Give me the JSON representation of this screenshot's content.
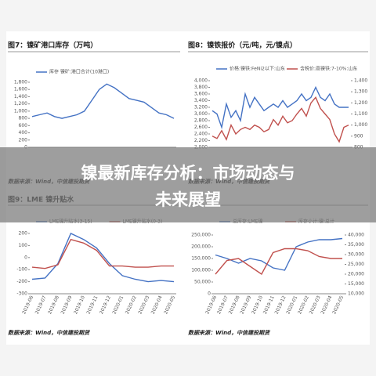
{
  "banner": [
    "镍最新库存分析：市场动态与",
    "未来展望"
  ],
  "chart_data": [
    {
      "type": "line",
      "title": "图7：镍矿港口库存（万吨）",
      "source": "数据来源：Wind，中信建投期货",
      "series": [
        {
          "name": "库存 镍矿:港口合计(10港口)",
          "color": "#4472c4",
          "values": [
            850,
            900,
            950,
            850,
            800,
            850,
            900,
            1000,
            1300,
            1600,
            1750,
            1650,
            1500,
            1350,
            1300,
            1250,
            1100,
            950,
            900,
            800
          ]
        }
      ],
      "ylim": [
        0,
        1800
      ],
      "yticks": [
        0,
        200,
        400,
        600,
        800,
        {
          "value": 1000,
          "label": "1,000"
        },
        {
          "value": 1200,
          "label": "1,200"
        },
        {
          "value": 1400,
          "label": "1,400"
        },
        {
          "value": 1600,
          "label": "1,600"
        },
        {
          "value": 1800,
          "label": "1,800"
        }
      ]
    },
    {
      "type": "line",
      "title": "图8：镍铁报价（元/吨，元/镍点）",
      "source": "数据来源：Wind，中信建投期货",
      "series": [
        {
          "name": "价格:镍铁:FeNi2以下:山东",
          "color": "#4472c4",
          "values": [
            3100,
            3000,
            2600,
            3300,
            2900,
            3100,
            2800,
            3600,
            3200,
            3500,
            3300,
            3100,
            3200,
            3300,
            3200,
            3400,
            3200,
            3300,
            3400,
            3600,
            3400,
            3500,
            3800,
            3500,
            3400,
            3600,
            3300,
            3200,
            3200,
            3200
          ]
        },
        {
          "name": "含税价:高镍铁:7-10%:山东",
          "color": "#c0504d",
          "axis": "y2",
          "values": [
            900,
            880,
            950,
            870,
            1000,
            920,
            960,
            980,
            960,
            1000,
            980,
            940,
            960,
            1050,
            1000,
            1080,
            1020,
            1040,
            1100,
            1150,
            1080,
            1200,
            1250,
            1150,
            1100,
            1050,
            920,
            850,
            980,
            1000
          ]
        }
      ],
      "ylim": [
        2000,
        4000
      ],
      "yticks": [
        {
          "value": 2000,
          "label": "2,000"
        },
        {
          "value": 2200,
          "label": "2,200"
        },
        {
          "value": 2400,
          "label": "2,400"
        },
        {
          "value": 2600,
          "label": "2,600"
        },
        {
          "value": 2800,
          "label": "2,800"
        },
        {
          "value": 3000,
          "label": "3,000"
        },
        {
          "value": 3200,
          "label": "3,200"
        },
        {
          "value": 3400,
          "label": "3,400"
        },
        {
          "value": 3600,
          "label": "3,600"
        },
        {
          "value": 3800,
          "label": "3,800"
        },
        {
          "value": 4000,
          "label": "4,000"
        }
      ],
      "y2lim": [
        800,
        1400
      ],
      "y2ticks": [
        800,
        900,
        {
          "value": 1000,
          "label": "1,000"
        },
        {
          "value": 1100,
          "label": "1,100"
        },
        {
          "value": 1200,
          "label": "1,200"
        },
        {
          "value": 1300,
          "label": "1,300"
        },
        {
          "value": 1400,
          "label": "1,400"
        }
      ]
    },
    {
      "type": "line",
      "title": "图9：LME 镍升贴水",
      "source": "数据来源：Wind，中信建投期货",
      "categories": [
        "2019-06",
        "2019-07",
        "2019-08",
        "2019-09",
        "2019-10",
        "2019-11",
        "2019-12",
        "2020-01",
        "2020-02",
        "2020-03",
        "2020-04",
        "2020-05"
      ],
      "series": [
        {
          "name": "LME镍升贴水(3-15)",
          "color": "#4472c4",
          "values": [
            -180,
            -170,
            -50,
            200,
            150,
            80,
            -50,
            -150,
            -180,
            -200,
            -190,
            -200
          ]
        },
        {
          "name": "LME镍升贴水(0-3)",
          "color": "#c0504d",
          "values": [
            -80,
            -90,
            -60,
            150,
            120,
            60,
            -70,
            -70,
            -80,
            -80,
            -70,
            -70
          ]
        }
      ],
      "ylim": [
        -300,
        200
      ],
      "yticks": [
        -300,
        -200,
        -100,
        0,
        100,
        200
      ]
    },
    {
      "type": "line",
      "source": "数据来源：Wind，中信建投期货",
      "categories": [
        "2019-06",
        "2019-07",
        "2019-08",
        "2019-09",
        "2019-10",
        "2019-11",
        "2019-12",
        "2020-01",
        "2020-02",
        "2020-03",
        "2020-04",
        "2020-05"
      ],
      "series": [
        {
          "name": "总库存:LME镍",
          "color": "#4472c4",
          "values": [
            165000,
            150000,
            130000,
            150000,
            140000,
            110000,
            100000,
            200000,
            220000,
            230000,
            230000,
            235000
          ]
        },
        {
          "name": "库存小计:镍:总计",
          "color": "#c0504d",
          "axis": "y2",
          "values": [
            20000,
            27000,
            28000,
            24000,
            20000,
            31000,
            33000,
            33000,
            32000,
            29000,
            28000,
            28000
          ]
        }
      ],
      "ylim": [
        0,
        250000
      ],
      "yticks": [
        0,
        {
          "value": 50000,
          "label": "50,000"
        },
        {
          "value": 100000,
          "label": "100,000"
        },
        {
          "value": 150000,
          "label": "150,000"
        },
        {
          "value": 200000,
          "label": "200,000"
        },
        {
          "value": 250000,
          "label": "250,000"
        }
      ],
      "y2lim": [
        10000,
        40000
      ],
      "y2ticks": [
        {
          "value": 10000,
          "label": "10,000"
        },
        {
          "value": 15000,
          "label": "15,000"
        },
        {
          "value": 20000,
          "label": "20,000"
        },
        {
          "value": 25000,
          "label": "25,000"
        },
        {
          "value": 30000,
          "label": "30,000"
        },
        {
          "value": 35000,
          "label": "35,000"
        },
        {
          "value": 40000,
          "label": "40,000"
        }
      ]
    }
  ]
}
